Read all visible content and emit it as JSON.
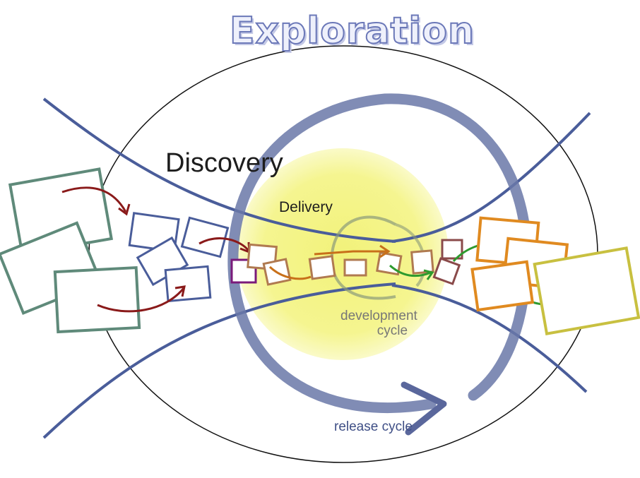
{
  "title": "Exploration",
  "labels": {
    "discovery": "Discovery",
    "delivery": "Delivery",
    "development_cycle_line1": "development",
    "development_cycle_line2": "cycle",
    "release_cycle": "release cycle"
  },
  "colors": {
    "title_fill": "#eef0fb",
    "title_stroke": "#6b78b8",
    "outer_ellipse": "#111111",
    "funnel_curves": "#4a5d9a",
    "release_ring": "#6a78a8",
    "delivery_glow": "#f4f48a",
    "dev_cycle_ring": "#8a9a7a",
    "arrow_red": "#8a1a1a",
    "arrow_orange": "#c8701a",
    "arrow_green": "#2e9a2e",
    "card_teal": "#5f8a7a",
    "card_blue": "#4a5d9a",
    "card_purple": "#7a1a7a",
    "card_brown": "#b07a50",
    "card_orange": "#e08a20",
    "card_olive": "#c8c040"
  }
}
